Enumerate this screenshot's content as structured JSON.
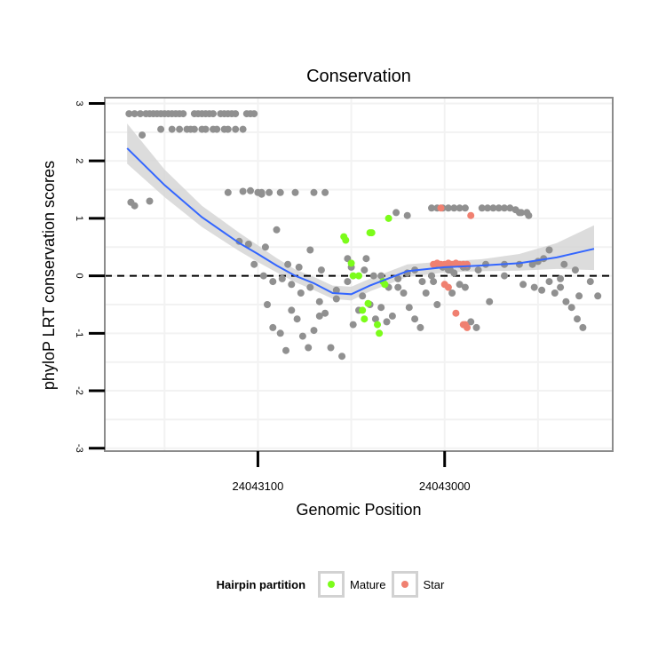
{
  "chart_data": {
    "type": "scatter",
    "title": "Conservation",
    "xlabel": "Genomic Position",
    "ylabel": "phyloP LRT conservation scores",
    "x_reversed": true,
    "xlim": [
      24043182,
      24042910
    ],
    "ylim": [
      -3.05,
      3.1
    ],
    "x_ticks": [
      24043100,
      24043000
    ],
    "x_tick_labels": [
      "24043100",
      "24043000"
    ],
    "y_ticks": [
      -3,
      -2,
      -1,
      0,
      1,
      2,
      3
    ],
    "y_tick_labels": [
      "-3",
      "-2",
      "-1",
      "0",
      "1",
      "2",
      "3"
    ],
    "reference_line": {
      "y": 0,
      "style": "dashed",
      "color": "#000000"
    },
    "colors": {
      "Other": "#909090",
      "Mature": "#7cfc1a",
      "Star": "#f08070",
      "smooth_line": "#3366ff",
      "confidence_band": "#d6d6d6",
      "panel_border": "#8c8c8c",
      "grid": "#f2f2f2"
    },
    "legend": {
      "title": "Hairpin partition",
      "position": "bottom",
      "entries": [
        {
          "label": "Mature",
          "color": "#7cfc1a"
        },
        {
          "label": "Star",
          "color": "#f08070"
        }
      ]
    },
    "smooth": {
      "method": "loess",
      "x": [
        24043170,
        24043150,
        24043130,
        24043110,
        24043100,
        24043090,
        24043080,
        24043070,
        24043060,
        24043050,
        24043040,
        24043020,
        24043000,
        24042980,
        24042960,
        24042940,
        24042920
      ],
      "y": [
        2.22,
        1.58,
        1.02,
        0.57,
        0.38,
        0.18,
        0.0,
        -0.13,
        -0.3,
        -0.32,
        -0.17,
        0.08,
        0.15,
        0.18,
        0.22,
        0.32,
        0.47
      ],
      "ymin": [
        1.95,
        1.37,
        0.85,
        0.43,
        0.24,
        0.06,
        -0.11,
        -0.25,
        -0.4,
        -0.43,
        -0.27,
        -0.02,
        0.06,
        0.08,
        0.09,
        0.12,
        0.1
      ],
      "ymax": [
        2.65,
        1.85,
        1.22,
        0.75,
        0.53,
        0.31,
        0.11,
        -0.02,
        -0.17,
        -0.19,
        -0.05,
        0.2,
        0.25,
        0.29,
        0.38,
        0.57,
        0.88
      ]
    },
    "series": [
      {
        "name": "Other",
        "x": [
          24043169,
          24043166,
          24043163,
          24043160,
          24043158,
          24043156,
          24043154,
          24043152,
          24043150,
          24043148,
          24043146,
          24043144,
          24043142,
          24043140,
          24043134,
          24043132,
          24043130,
          24043128,
          24043126,
          24043124,
          24043120,
          24043118,
          24043116,
          24043114,
          24043112,
          24043106,
          24043104,
          24043102,
          24043168,
          24043166,
          24043162,
          24043158,
          24043152,
          24043146,
          24043142,
          24043138,
          24043136,
          24043134,
          24043130,
          24043128,
          24043124,
          24043122,
          24043118,
          24043116,
          24043112,
          24043108,
          24043104,
          24043100,
          24043098,
          24043095,
          24043092,
          24043088,
          24043085,
          24043082,
          24043079,
          24043076,
          24043073,
          24043070,
          24043067,
          24043064,
          24043061,
          24043058,
          24043055,
          24043052,
          24043049,
          24043046,
          24043043,
          24043040,
          24043037,
          24043034,
          24043031,
          24043028,
          24043025,
          24043022,
          24043019,
          24043016,
          24043013,
          24043010,
          24043007,
          24043004,
          24043001,
          24042998,
          24042995,
          24042992,
          24042989,
          24042986,
          24042983,
          24042980,
          24042977,
          24042974,
          24042971,
          24042968,
          24042965,
          24042962,
          24042959,
          24042956,
          24042953,
          24042950,
          24042947,
          24042944,
          24042941,
          24042938,
          24042935,
          24042932,
          24042929,
          24042926,
          24043110,
          24043105,
          24043096,
          24043090,
          24043084,
          24043078,
          24043072,
          24043066,
          24043058,
          24043052,
          24043044,
          24043038,
          24043030,
          24043020,
          24043012,
          24043004,
          24042996,
          24042990,
          24042982,
          24042976,
          24042968,
          24042960,
          24042952,
          24042944,
          24042936,
          24042930,
          24043102,
          24043097,
          24043092,
          24043087,
          24043082,
          24043077,
          24043072,
          24043067,
          24043050,
          24043042,
          24043034,
          24043025,
          24043016,
          24043006,
          24042997,
          24042988,
          24042978,
          24042968,
          24042958,
          24042948,
          24042938,
          24042928,
          24042922,
          24042918,
          24043007,
          24043004,
          24043001,
          24042998,
          24042995,
          24042992,
          24042989,
          24043116,
          24043108,
          24043098,
          24043094,
          24043088,
          24043080,
          24043070,
          24043064,
          24043026,
          24043020,
          24042960,
          24042955
        ],
        "y": [
          2.82,
          2.82,
          2.82,
          2.82,
          2.82,
          2.82,
          2.82,
          2.82,
          2.82,
          2.82,
          2.82,
          2.82,
          2.82,
          2.82,
          2.82,
          2.82,
          2.82,
          2.82,
          2.82,
          2.82,
          2.82,
          2.82,
          2.82,
          2.82,
          2.82,
          2.82,
          2.82,
          2.82,
          1.28,
          1.22,
          2.45,
          1.3,
          2.55,
          2.55,
          2.55,
          2.55,
          2.55,
          2.55,
          2.55,
          2.55,
          2.55,
          2.55,
          2.55,
          2.55,
          2.55,
          2.55,
          1.48,
          1.45,
          1.42,
          -0.5,
          -0.9,
          -1.0,
          -1.3,
          -0.6,
          -0.75,
          -1.05,
          -1.25,
          -0.95,
          -0.7,
          -0.65,
          -1.25,
          -0.4,
          -1.4,
          0.3,
          -0.85,
          -0.6,
          0.1,
          -0.5,
          -0.75,
          -0.55,
          -0.8,
          -0.7,
          -0.05,
          -0.3,
          -0.55,
          -0.75,
          -0.9,
          -0.3,
          0.0,
          0.2,
          0.15,
          0.1,
          0.05,
          -0.15,
          -0.2,
          -0.8,
          -0.9,
          1.18,
          1.18,
          1.18,
          1.18,
          1.18,
          1.18,
          1.15,
          1.1,
          1.1,
          0.2,
          0.25,
          0.3,
          -0.1,
          -0.3,
          -0.2,
          -0.45,
          -0.55,
          -0.75,
          -0.9,
          0.6,
          0.55,
          0.5,
          0.8,
          0.2,
          0.15,
          0.45,
          0.1,
          -0.25,
          -0.1,
          -0.35,
          0.0,
          -0.2,
          0.05,
          -0.1,
          -0.5,
          -0.3,
          0.15,
          0.1,
          -0.45,
          0.0,
          0.2,
          -0.2,
          0.45,
          0.2,
          0.1,
          0.2,
          0.0,
          -0.1,
          -0.05,
          -0.15,
          -0.3,
          -0.2,
          -0.45,
          0.15,
          0.3,
          0.0,
          -0.2,
          0.1,
          -0.1,
          0.1,
          0.15,
          0.2,
          0.2,
          -0.15,
          -0.25,
          -0.05,
          -0.35,
          -0.1,
          -0.35,
          1.18,
          1.18,
          1.18,
          1.18,
          1.18,
          1.18,
          1.18,
          1.45,
          1.47,
          1.45,
          1.45,
          1.45,
          1.45,
          1.45,
          1.45,
          1.1,
          1.05,
          1.1,
          1.05
        ]
      },
      {
        "name": "Mature",
        "x": [
          24043054,
          24043053,
          24043050,
          24043049,
          24043046,
          24043044,
          24043043,
          24043041,
          24043040,
          24043039,
          24043036,
          24043035,
          24043033,
          24043032,
          24043030
        ],
        "y": [
          0.68,
          0.62,
          0.22,
          0.0,
          0.0,
          -0.6,
          -0.75,
          -0.48,
          0.75,
          0.75,
          -0.85,
          -1.0,
          -0.1,
          -0.15,
          1.0
        ]
      },
      {
        "name": "Star",
        "x": [
          24043006,
          24043004,
          24043002,
          24043000,
          24042998,
          24042996,
          24042994,
          24042992,
          24042990,
          24042988,
          24043002,
          24042998,
          24042986,
          24042989,
          24043000,
          24042994,
          24042990,
          24042988
        ],
        "y": [
          0.2,
          0.22,
          0.2,
          0.2,
          0.22,
          0.2,
          0.22,
          0.2,
          0.2,
          0.2,
          1.18,
          -0.2,
          1.05,
          -0.85,
          -0.15,
          -0.65,
          -0.85,
          -0.9
        ]
      }
    ]
  }
}
